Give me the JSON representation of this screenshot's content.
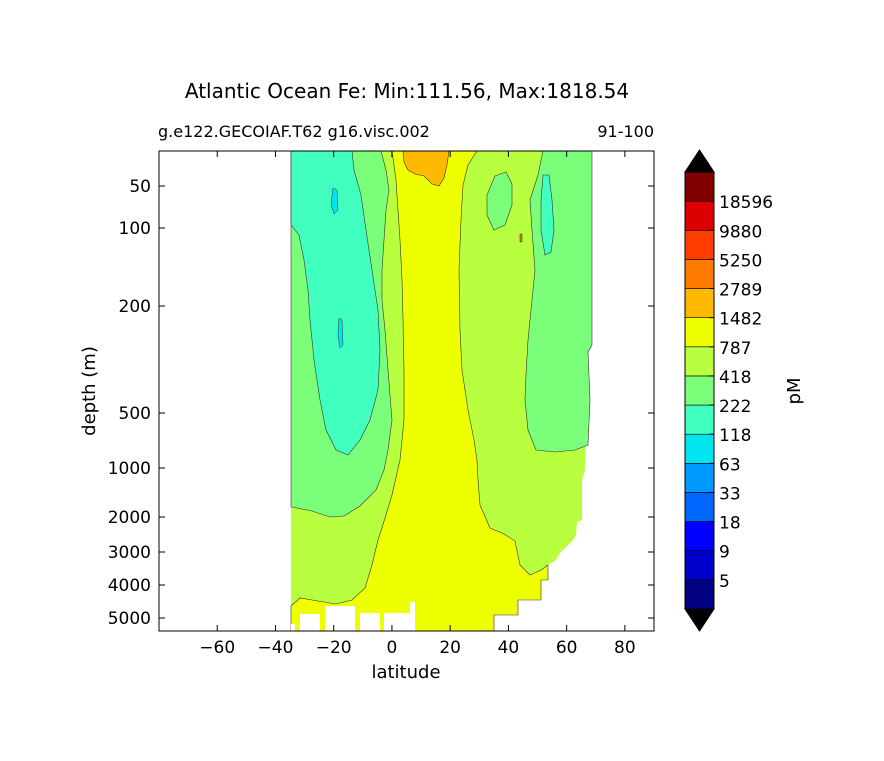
{
  "chart_data": {
    "type": "contourf",
    "title": "Atlantic Ocean Fe: Min:111.56, Max:1818.54",
    "subtitle_left": "g.e122.GECOIAF.T62 g16.visc.002",
    "subtitle_right": "91-100",
    "xlabel": "latitude",
    "ylabel": "depth (m)",
    "xlim": [
      -80,
      90
    ],
    "xticks": [
      -60,
      -40,
      -20,
      0,
      20,
      40,
      60,
      80
    ],
    "xtick_labels": [
      "−60",
      "−40",
      "−20",
      "0",
      "20",
      "40",
      "60",
      "80"
    ],
    "yticks": [
      50,
      100,
      200,
      500,
      1000,
      2000,
      3000,
      4000,
      5000
    ],
    "yaxis": "inverted, nonlinear (depth)",
    "colorbar": {
      "label": "pM",
      "extend": "both",
      "levels": [
        "5",
        "9",
        "18",
        "33",
        "63",
        "118",
        "222",
        "418",
        "787",
        "1482",
        "2789",
        "5250",
        "9880",
        "18596"
      ],
      "colors": [
        "#000080",
        "#0000cd",
        "#0000ff",
        "#0066ff",
        "#0099ff",
        "#00e5ee",
        "#40ffbf",
        "#7bff7b",
        "#b8ff40",
        "#eeff00",
        "#ffb900",
        "#ff7b00",
        "#ff3d00",
        "#dd0000",
        "#800000"
      ],
      "under_color": "#000080",
      "over_color": "#800000"
    },
    "data_extent_lat": [
      -34,
      69
    ],
    "approx_regions": [
      {
        "range_pM": "787-1482",
        "color": "#eeff00",
        "where": "equatorial band ~0 to 25 latitude, all depths; deep water south of ~40"
      },
      {
        "range_pM": "1482-2789",
        "color": "#ffb900",
        "where": "surface ~5 to 20 latitude, above ~50 m"
      },
      {
        "range_pM": "418-787",
        "color": "#b8ff40",
        "where": "subtropics and deep north Atlantic"
      },
      {
        "range_pM": "222-418",
        "color": "#7bff7b",
        "where": "around gyre cores and deep south"
      },
      {
        "range_pM": "118-222",
        "color": "#40ffbf",
        "where": "south subtropical gyre -33 to -15, 50 to 700 m; north gyre core ~50-55 latitude"
      }
    ]
  }
}
